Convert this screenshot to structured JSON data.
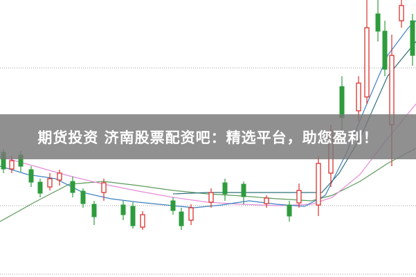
{
  "banner": {
    "title": "期货投资 济南股票配资吧：精选平台，助您盈利！"
  }
}
